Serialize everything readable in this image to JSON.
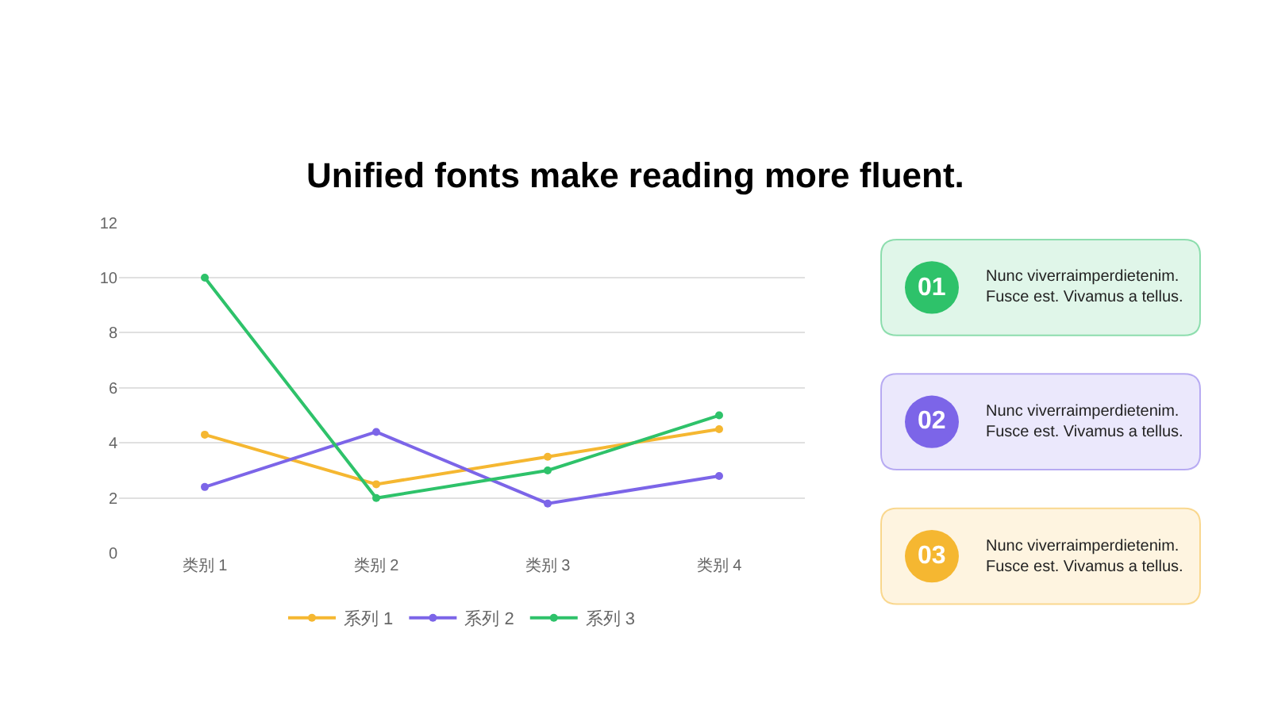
{
  "chart_data": [
    {
      "type": "line",
      "title": "Unified fonts make reading more fluent.",
      "categories": [
        "类别 1",
        "类别 2",
        "类别 3",
        "类别 4"
      ],
      "series": [
        {
          "name": "系列 1",
          "color": "#f5b731",
          "values": [
            4.3,
            2.5,
            3.5,
            4.5
          ]
        },
        {
          "name": "系列 2",
          "color": "#7c65e8",
          "values": [
            2.4,
            4.4,
            1.8,
            2.8
          ]
        },
        {
          "name": "系列 3",
          "color": "#2ec26a",
          "values": [
            10,
            2,
            3,
            5
          ]
        }
      ],
      "ylim": [
        0,
        12
      ],
      "yticks": [
        0,
        2,
        4,
        6,
        8,
        10,
        12
      ],
      "grid": "y",
      "legend": "bottom",
      "marker": "circle",
      "line_style": "solid"
    },
    {
      "type": "other",
      "colors": [
        "#2ec26a",
        "#7c65e8",
        "#f5b731"
      ],
      "annotations": [
        "01",
        "Nunc viverraimperdietenim.\nFusce est. Vivamus a tellus.",
        "02",
        "Nunc viverraimperdietenim.\nFusce est. Vivamus a tellus.",
        "03",
        "Nunc viverraimperdietenim.\nFusce est. Vivamus a tellus."
      ]
    }
  ]
}
